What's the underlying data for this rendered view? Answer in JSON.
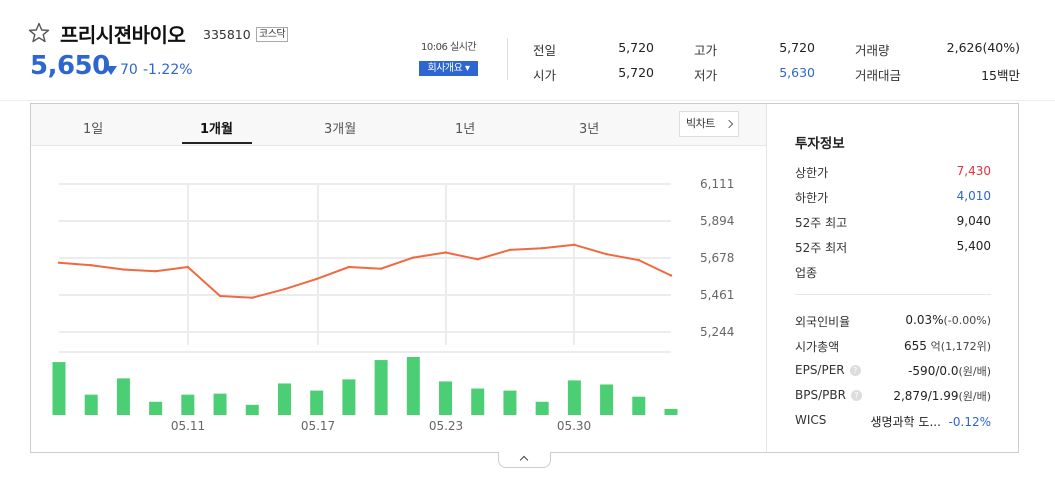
{
  "stock": {
    "name": "프리시젼바이오",
    "code": "335810",
    "market": "코스닥",
    "price": "5,650",
    "change": "70",
    "change_rate": "-1.22%",
    "realtime": "10:06 실시간",
    "company_button": "회사개요 ▾"
  },
  "quote": {
    "prev_close_label": "전일",
    "prev_close": "5,720",
    "open_label": "시가",
    "open": "5,720",
    "high_label": "고가",
    "high": "5,720",
    "low_label": "저가",
    "low": "5,630",
    "volume_label": "거래량",
    "volume": "2,626(40%)",
    "value_label": "거래대금",
    "value": "15백만"
  },
  "tabs": [
    "1일",
    "1개월",
    "3개월",
    "1년",
    "3년"
  ],
  "active_tab": "1개월",
  "big_chart_button": "빅차트",
  "chart_data": {
    "type": "line",
    "x_ticks": [
      "05.11",
      "05.17",
      "05.23",
      "05.30"
    ],
    "y_ticks": [
      "6,111",
      "5,894",
      "5,678",
      "5,461",
      "5,244"
    ],
    "ylim": [
      5244,
      6111
    ],
    "series": [
      {
        "values": [
          5650,
          5635,
          5610,
          5600,
          5625,
          5455,
          5445,
          5495,
          5555,
          5625,
          5615,
          5680,
          5710,
          5670,
          5725,
          5735,
          5755,
          5700,
          5665,
          5575
        ]
      }
    ],
    "volume": [
      52,
      20,
      36,
      13,
      20,
      21,
      10,
      31,
      24,
      35,
      54,
      57,
      33,
      26,
      24,
      13,
      34,
      30,
      18,
      6
    ],
    "colors": {
      "line": "#f06a3f",
      "volume": "#4cce74",
      "grid": "#ececec"
    }
  },
  "info": {
    "title": "투자정보",
    "upper_limit_label": "상한가",
    "upper_limit": "7,430",
    "lower_limit_label": "하한가",
    "lower_limit": "4,010",
    "high52_label": "52주 최고",
    "high52": "9,040",
    "low52_label": "52주 최저",
    "low52": "5,400",
    "industry_label": "업종",
    "foreign_label": "외국인비율",
    "foreign_value": "0.03%",
    "foreign_change": "(-0.00%)",
    "mcap_label": "시가총액",
    "mcap_value": "655",
    "mcap_unit": "억",
    "mcap_rank": "(1,172위)",
    "eps_label": "EPS/PER",
    "eps_value": "-590/0.0",
    "eps_unit": "(원/배)",
    "bps_label": "BPS/PBR",
    "bps_value": "2,879/1.99",
    "bps_unit": "(원/배)",
    "wics_label": "WICS",
    "wics_value": "생명과학 도...",
    "wics_change": "-0.12%"
  }
}
